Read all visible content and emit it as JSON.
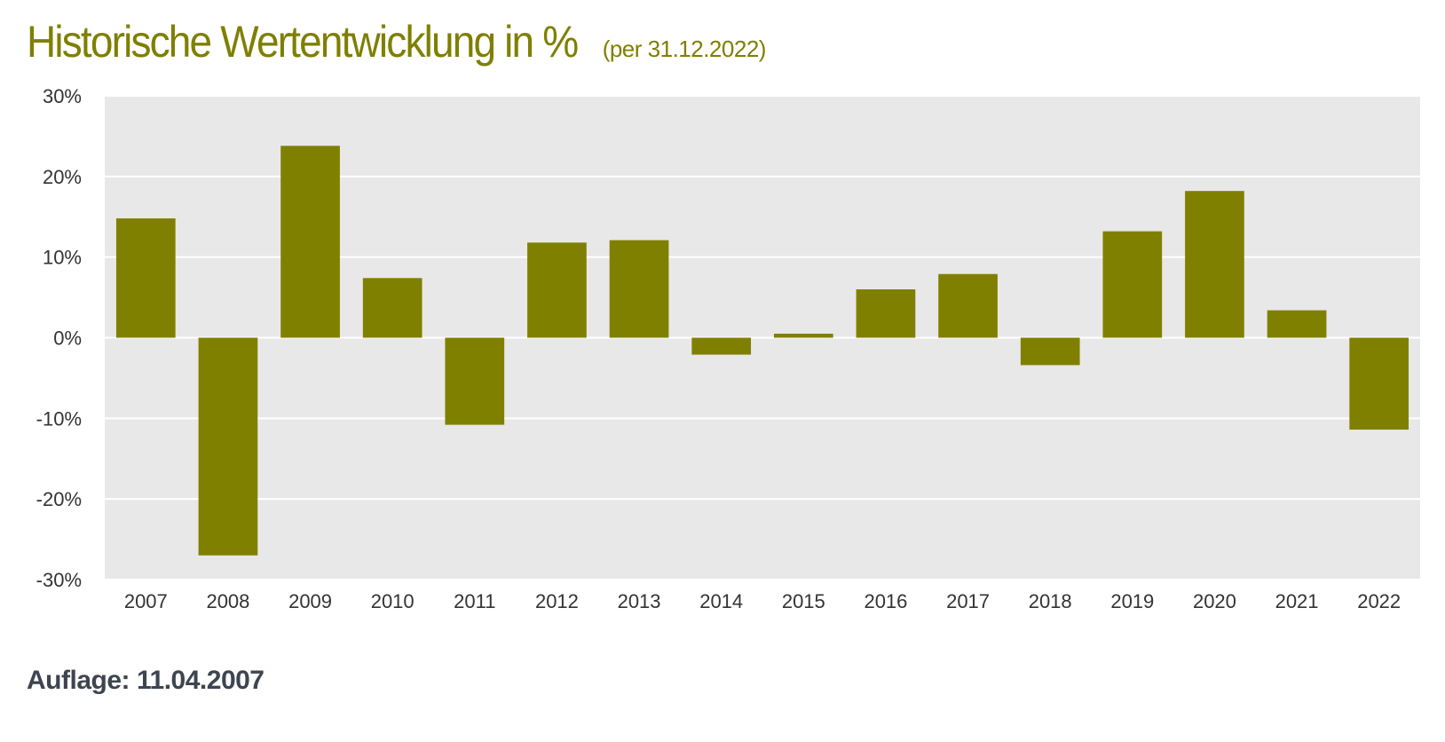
{
  "header": {
    "title": "Historische Wertentwicklung in %",
    "subtitle": "(per 31.12.2022)"
  },
  "footer": {
    "label": "Auflage:",
    "value": "11.04.2007"
  },
  "colors": {
    "bar": "#808000",
    "plot_background": "#e8e8e8",
    "gridline": "#ffffff",
    "title": "#7f7f00",
    "footer_text": "#3d4550",
    "tick_text": "#333333"
  },
  "chart_data": {
    "type": "bar",
    "title": "Historische Wertentwicklung in %",
    "subtitle": "(per 31.12.2022)",
    "xlabel": "",
    "ylabel": "",
    "categories": [
      "2007",
      "2008",
      "2009",
      "2010",
      "2011",
      "2012",
      "2013",
      "2014",
      "2015",
      "2016",
      "2017",
      "2018",
      "2019",
      "2020",
      "2021",
      "2022"
    ],
    "values": [
      14.8,
      -27.0,
      23.8,
      7.4,
      -10.8,
      11.8,
      12.1,
      -2.1,
      0.5,
      6.0,
      7.9,
      -3.4,
      13.2,
      18.2,
      3.4,
      -11.4
    ],
    "ylim": [
      -30,
      30
    ],
    "yticks": [
      30,
      20,
      10,
      0,
      -10,
      -20,
      -30
    ],
    "ytick_labels": [
      "30%",
      "20%",
      "10%",
      "0%",
      "-10%",
      "-20%",
      "-30%"
    ],
    "grid": true,
    "legend": "none"
  }
}
